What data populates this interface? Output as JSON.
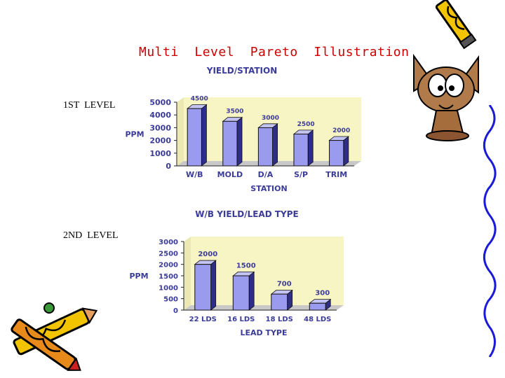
{
  "slide": {
    "title": "Multi  Level  Pareto  Illustration",
    "level1_label": "1ST  LEVEL",
    "level2_label": "2ND  LEVEL"
  },
  "colors": {
    "title": "#cc0000",
    "bar_front": "#9a9aee",
    "bar_side": "#2e2e88",
    "bar_top": "#c4c4f4",
    "plot_back": "#f8f5c4",
    "plot_floor": "#c8c8c8",
    "chart_text": "#3b3b9a"
  },
  "decorations": [
    "crayons-clipart-icon",
    "cartoon-cat-clipart-icon",
    "squiggle-border-icon"
  ],
  "chart_data": [
    {
      "type": "bar",
      "title": "YIELD/STATION",
      "xlabel": "STATION",
      "ylabel": "PPM",
      "categories": [
        "W/B",
        "MOLD",
        "D/A",
        "S/P",
        "TRIM"
      ],
      "values": [
        4500,
        3500,
        3000,
        2500,
        2000
      ],
      "data_labels": [
        "4500",
        "3500",
        "3000",
        "2500",
        "2000"
      ],
      "ylim": [
        0,
        5000
      ],
      "yticks": [
        0,
        1000,
        2000,
        3000,
        4000,
        5000
      ],
      "grid": false,
      "legend": "none"
    },
    {
      "type": "bar",
      "title": "W/B YIELD/LEAD TYPE",
      "xlabel": "LEAD TYPE",
      "ylabel": "PPM",
      "categories": [
        "22 LDS",
        "16 LDS",
        "18 LDS",
        "48 LDS"
      ],
      "values": [
        2000,
        1500,
        700,
        300
      ],
      "data_labels": [
        "2000",
        "1500",
        "700",
        "300"
      ],
      "ylim": [
        0,
        3000
      ],
      "yticks": [
        0,
        500,
        1000,
        1500,
        2000,
        2500,
        3000
      ],
      "grid": false,
      "legend": "none"
    }
  ]
}
